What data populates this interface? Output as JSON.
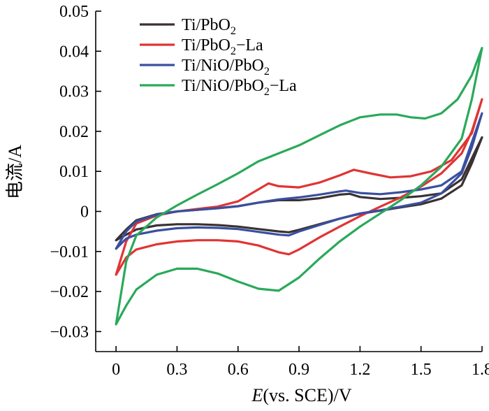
{
  "chart_data": {
    "type": "line",
    "title": "",
    "xlabel_italic": "E",
    "xlabel_rest": "(vs. SCE)/V",
    "ylabel": "电流/A",
    "xlim": [
      -0.1,
      1.8
    ],
    "ylim": [
      -0.035,
      0.05
    ],
    "x_ticks": [
      "0",
      "0.3",
      "0.6",
      "0.9",
      "1.2",
      "1.5",
      "1.8"
    ],
    "x_tick_values": [
      0,
      0.3,
      0.6,
      0.9,
      1.2,
      1.5,
      1.8
    ],
    "y_ticks": [
      "0.05",
      "0.04",
      "0.03",
      "0.02",
      "0.01",
      "0",
      "−0.01",
      "−0.02",
      "−0.03"
    ],
    "y_tick_values": [
      0.05,
      0.04,
      0.03,
      0.02,
      0.01,
      0,
      -0.01,
      -0.02,
      -0.03
    ],
    "grid": false,
    "legend_position": "top-left",
    "series": [
      {
        "name_parts": [
          "Ti/PbO",
          "2",
          ""
        ],
        "color": "#3a3232",
        "x": [
          0,
          0.05,
          0.1,
          0.2,
          0.3,
          0.4,
          0.5,
          0.6,
          0.7,
          0.8,
          0.9,
          1.0,
          1.1,
          1.15,
          1.2,
          1.3,
          1.4,
          1.5,
          1.6,
          1.7,
          1.8,
          1.75,
          1.7,
          1.6,
          1.5,
          1.4,
          1.3,
          1.2,
          1.1,
          1.0,
          0.9,
          0.85,
          0.8,
          0.7,
          0.6,
          0.5,
          0.4,
          0.3,
          0.2,
          0.1,
          0.05,
          0
        ],
        "y": [
          -0.0072,
          -0.0045,
          -0.0022,
          -0.0007,
          0,
          0.0004,
          0.0008,
          0.0013,
          0.0022,
          0.0028,
          0.0028,
          0.0033,
          0.0042,
          0.0044,
          0.0036,
          0.0031,
          0.0034,
          0.0038,
          0.0045,
          0.008,
          0.0185,
          0.012,
          0.0065,
          0.0032,
          0.0018,
          0.001,
          0.0002,
          -0.0006,
          -0.0018,
          -0.0032,
          -0.0046,
          -0.0052,
          -0.005,
          -0.0044,
          -0.0038,
          -0.0034,
          -0.0032,
          -0.0032,
          -0.0035,
          -0.0045,
          -0.0058,
          -0.0072
        ]
      },
      {
        "name_parts": [
          "Ti/PbO",
          "2",
          "−La"
        ],
        "color": "#e03434",
        "x": [
          0,
          0.05,
          0.1,
          0.2,
          0.3,
          0.4,
          0.5,
          0.6,
          0.7,
          0.75,
          0.8,
          0.9,
          1.0,
          1.1,
          1.17,
          1.25,
          1.35,
          1.45,
          1.55,
          1.65,
          1.75,
          1.8,
          1.75,
          1.7,
          1.6,
          1.5,
          1.4,
          1.3,
          1.2,
          1.1,
          1.0,
          0.9,
          0.85,
          0.8,
          0.7,
          0.6,
          0.5,
          0.4,
          0.3,
          0.2,
          0.1,
          0.05,
          0
        ],
        "y": [
          -0.0158,
          -0.0075,
          -0.003,
          -0.001,
          0,
          0.0006,
          0.0012,
          0.0025,
          0.0055,
          0.007,
          0.0063,
          0.006,
          0.0072,
          0.009,
          0.0104,
          0.0095,
          0.0085,
          0.0088,
          0.01,
          0.0128,
          0.0195,
          0.028,
          0.02,
          0.0145,
          0.0095,
          0.0062,
          0.0035,
          0.0012,
          -0.0012,
          -0.0038,
          -0.0065,
          -0.0095,
          -0.0107,
          -0.0102,
          -0.0085,
          -0.0075,
          -0.0072,
          -0.0072,
          -0.0075,
          -0.0082,
          -0.0095,
          -0.0115,
          -0.0158
        ]
      },
      {
        "name_parts": [
          "Ti/NiO/PbO",
          "2",
          ""
        ],
        "color": "#3a4fa0",
        "x": [
          0,
          0.05,
          0.1,
          0.2,
          0.3,
          0.4,
          0.5,
          0.6,
          0.7,
          0.8,
          0.9,
          1.0,
          1.1,
          1.13,
          1.2,
          1.3,
          1.4,
          1.5,
          1.6,
          1.7,
          1.8,
          1.75,
          1.7,
          1.6,
          1.5,
          1.4,
          1.3,
          1.2,
          1.1,
          1.0,
          0.9,
          0.85,
          0.8,
          0.7,
          0.6,
          0.5,
          0.4,
          0.3,
          0.2,
          0.1,
          0.05,
          0
        ],
        "y": [
          -0.0093,
          -0.005,
          -0.0025,
          -0.0008,
          0,
          0.0004,
          0.0008,
          0.0013,
          0.0022,
          0.003,
          0.0035,
          0.0042,
          0.005,
          0.0052,
          0.0046,
          0.0043,
          0.0048,
          0.0055,
          0.0065,
          0.01,
          0.0245,
          0.016,
          0.0095,
          0.0045,
          0.0022,
          0.0012,
          0.0003,
          -0.0005,
          -0.0018,
          -0.0034,
          -0.005,
          -0.006,
          -0.0058,
          -0.0051,
          -0.0044,
          -0.0041,
          -0.004,
          -0.0042,
          -0.0048,
          -0.0058,
          -0.0068,
          -0.0093
        ]
      },
      {
        "name_parts": [
          "Ti/NiO/PbO",
          "2",
          "−La"
        ],
        "color": "#2aa95a",
        "x": [
          0,
          0.05,
          0.1,
          0.2,
          0.3,
          0.4,
          0.5,
          0.6,
          0.7,
          0.8,
          0.9,
          1.0,
          1.1,
          1.2,
          1.3,
          1.38,
          1.45,
          1.52,
          1.6,
          1.68,
          1.75,
          1.8,
          1.75,
          1.7,
          1.6,
          1.5,
          1.4,
          1.3,
          1.2,
          1.1,
          1.0,
          0.9,
          0.8,
          0.7,
          0.6,
          0.5,
          0.4,
          0.3,
          0.2,
          0.1,
          0.05,
          0
        ],
        "y": [
          -0.0282,
          -0.0125,
          -0.006,
          -0.0015,
          0.0015,
          0.0042,
          0.0068,
          0.0095,
          0.0125,
          0.0145,
          0.0165,
          0.019,
          0.0215,
          0.0235,
          0.0242,
          0.0242,
          0.0235,
          0.0232,
          0.0245,
          0.028,
          0.034,
          0.0408,
          0.028,
          0.0182,
          0.0112,
          0.0065,
          0.0028,
          -0.0005,
          -0.0038,
          -0.0075,
          -0.0118,
          -0.0165,
          -0.0198,
          -0.0193,
          -0.0175,
          -0.0155,
          -0.0143,
          -0.0143,
          -0.0158,
          -0.0195,
          -0.0235,
          -0.0282
        ]
      }
    ]
  }
}
